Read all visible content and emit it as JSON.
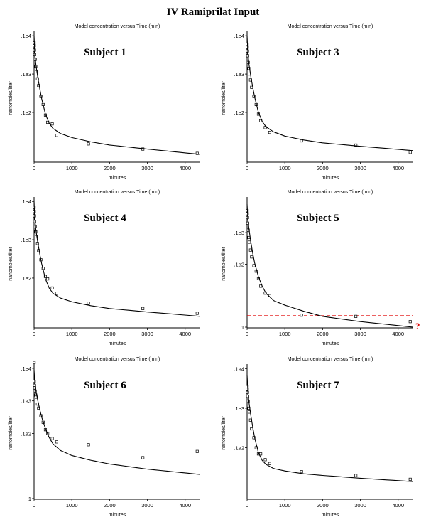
{
  "title": "IV Ramiprilat Input",
  "chart_data": [
    {
      "type": "scatter",
      "title": "Model concentration versus Time (min)",
      "subject_label": "Subject 1",
      "xlabel": "minutes",
      "ylabel": "nanomoles/liter",
      "y_scale": "log",
      "xlim": [
        0,
        4400
      ],
      "ylim": [
        5,
        11000
      ],
      "x_ticks": [
        {
          "v": 0,
          "label": "0"
        },
        {
          "v": 1000,
          "label": "1000"
        },
        {
          "v": 2000,
          "label": "2000"
        },
        {
          "v": 3000,
          "label": "3000"
        },
        {
          "v": 4000,
          "label": "4000"
        }
      ],
      "y_ticks": [
        {
          "v": 10000,
          "label": ".1e4"
        },
        {
          "v": 1000,
          "label": ".1e3"
        },
        {
          "v": 100,
          "label": ".1e2"
        }
      ],
      "series": [
        {
          "kind": "points",
          "x": [
            2,
            5,
            10,
            15,
            30,
            45,
            60,
            90,
            120,
            180,
            240,
            300,
            360,
            480,
            600,
            1440,
            2880,
            4320
          ],
          "y": [
            6500,
            5500,
            4200,
            3200,
            2400,
            1600,
            1150,
            750,
            500,
            260,
            160,
            85,
            55,
            50,
            25,
            15,
            11,
            8.5
          ]
        },
        {
          "kind": "model",
          "x": [
            0,
            20,
            50,
            100,
            150,
            200,
            300,
            400,
            500,
            700,
            1000,
            1500,
            2000,
            3000,
            4400
          ],
          "y": [
            10000,
            3300,
            1700,
            800,
            420,
            230,
            90,
            52,
            38,
            28,
            22,
            17,
            14,
            11,
            8
          ]
        }
      ]
    },
    {
      "type": "scatter",
      "title": "Model concentration versus Time (min)",
      "subject_label": "Subject 3",
      "xlabel": "minutes",
      "ylabel": "nanomoles/liter",
      "y_scale": "log",
      "xlim": [
        0,
        4400
      ],
      "ylim": [
        5,
        11000
      ],
      "x_ticks": [
        {
          "v": 0,
          "label": "0"
        },
        {
          "v": 1000,
          "label": "1000"
        },
        {
          "v": 2000,
          "label": "2000"
        },
        {
          "v": 3000,
          "label": "3000"
        },
        {
          "v": 4000,
          "label": "4000"
        }
      ],
      "y_ticks": [
        {
          "v": 10000,
          "label": ".1e4"
        },
        {
          "v": 1000,
          "label": ".1e3"
        },
        {
          "v": 100,
          "label": ".1e2"
        }
      ],
      "series": [
        {
          "kind": "points",
          "x": [
            2,
            5,
            10,
            15,
            30,
            45,
            60,
            90,
            120,
            180,
            240,
            300,
            360,
            480,
            600,
            1440,
            2880,
            4320
          ],
          "y": [
            6000,
            5000,
            4000,
            3000,
            2000,
            1400,
            1000,
            700,
            450,
            260,
            160,
            90,
            60,
            40,
            30,
            18,
            14,
            9
          ]
        },
        {
          "kind": "model",
          "x": [
            0,
            20,
            50,
            100,
            150,
            200,
            300,
            400,
            500,
            700,
            1000,
            1500,
            2000,
            3000,
            4400
          ],
          "y": [
            10000,
            3500,
            1800,
            850,
            450,
            250,
            100,
            58,
            42,
            31,
            24,
            19,
            16,
            13,
            10
          ]
        }
      ]
    },
    {
      "type": "scatter",
      "title": "Model concentration versus Time (min)",
      "subject_label": "Subject 4",
      "xlabel": "minutes",
      "ylabel": "nanomoles/liter",
      "y_scale": "log",
      "xlim": [
        0,
        4400
      ],
      "ylim": [
        5,
        11000
      ],
      "x_ticks": [
        {
          "v": 0,
          "label": "0"
        },
        {
          "v": 1000,
          "label": "1000"
        },
        {
          "v": 2000,
          "label": "2000"
        },
        {
          "v": 3000,
          "label": "3000"
        },
        {
          "v": 4000,
          "label": "4000"
        }
      ],
      "y_ticks": [
        {
          "v": 10000,
          "label": ".1e4"
        },
        {
          "v": 1000,
          "label": ".1e3"
        },
        {
          "v": 100,
          "label": ".1e2"
        }
      ],
      "series": [
        {
          "kind": "points",
          "x": [
            2,
            5,
            10,
            15,
            30,
            45,
            60,
            90,
            120,
            180,
            240,
            300,
            360,
            480,
            600,
            1440,
            2880,
            4320
          ],
          "y": [
            7000,
            5500,
            4200,
            3000,
            2200,
            1600,
            1200,
            800,
            520,
            300,
            180,
            110,
            95,
            55,
            40,
            22,
            16,
            12
          ]
        },
        {
          "kind": "model",
          "x": [
            0,
            20,
            50,
            100,
            150,
            200,
            300,
            400,
            500,
            700,
            1000,
            1500,
            2000,
            3000,
            4400
          ],
          "y": [
            10000,
            3400,
            1750,
            820,
            430,
            240,
            95,
            55,
            40,
            30,
            24,
            19,
            16,
            13,
            10
          ]
        }
      ]
    },
    {
      "type": "scatter",
      "title": "Model concentration versus Time (min)",
      "subject_label": "Subject 5",
      "xlabel": "minutes",
      "ylabel": "nanomoles/liter",
      "y_scale": "log",
      "xlim": [
        0,
        4400
      ],
      "ylim": [
        0.95,
        11000
      ],
      "x_ticks": [
        {
          "v": 0,
          "label": "0"
        },
        {
          "v": 1000,
          "label": "1000"
        },
        {
          "v": 2000,
          "label": "2000"
        },
        {
          "v": 3000,
          "label": "3000"
        },
        {
          "v": 4000,
          "label": "4000"
        }
      ],
      "y_ticks": [
        {
          "v": 1000,
          "label": ".1e3"
        },
        {
          "v": 100,
          "label": ".1e2"
        },
        {
          "v": 1,
          "label": "1"
        }
      ],
      "reference_line": {
        "y": 2.3,
        "color": "#e00000",
        "label": "?"
      },
      "series": [
        {
          "kind": "points",
          "x": [
            2,
            5,
            10,
            15,
            30,
            45,
            60,
            90,
            120,
            180,
            240,
            300,
            360,
            480,
            600,
            1440,
            2880,
            4320
          ],
          "y": [
            5000,
            4000,
            3000,
            2000,
            1200,
            700,
            500,
            280,
            170,
            90,
            60,
            35,
            20,
            12,
            10,
            2.4,
            2.2,
            1.5
          ]
        },
        {
          "kind": "model",
          "x": [
            0,
            20,
            50,
            100,
            150,
            200,
            300,
            400,
            500,
            700,
            1000,
            1500,
            2000,
            3000,
            4400
          ],
          "y": [
            8000,
            2800,
            1300,
            500,
            220,
            110,
            40,
            20,
            12,
            7,
            5,
            3.2,
            2.2,
            1.5,
            1.0
          ]
        }
      ]
    },
    {
      "type": "scatter",
      "title": "Model concentration versus Time (min)",
      "subject_label": "Subject 6",
      "xlabel": "minutes",
      "ylabel": "nanomoles/liter",
      "y_scale": "log",
      "xlim": [
        0,
        4400
      ],
      "ylim": [
        0.95,
        11000
      ],
      "x_ticks": [
        {
          "v": 0,
          "label": "0"
        },
        {
          "v": 1000,
          "label": "1000"
        },
        {
          "v": 2000,
          "label": "2000"
        },
        {
          "v": 3000,
          "label": "3000"
        },
        {
          "v": 4000,
          "label": "4000"
        }
      ],
      "y_ticks": [
        {
          "v": 10000,
          "label": ".1e4"
        },
        {
          "v": 1000,
          "label": ".1e3"
        },
        {
          "v": 100,
          "label": ".1e2"
        },
        {
          "v": 1,
          "label": "1"
        }
      ],
      "series": [
        {
          "kind": "points",
          "x": [
            2,
            5,
            10,
            15,
            30,
            45,
            60,
            90,
            120,
            180,
            240,
            300,
            360,
            480,
            600,
            1440,
            2880,
            4320
          ],
          "y": [
            15000,
            4000,
            3000,
            2500,
            2000,
            1500,
            1300,
            800,
            600,
            350,
            220,
            130,
            100,
            70,
            55,
            45,
            18,
            28
          ]
        },
        {
          "kind": "model",
          "x": [
            0,
            20,
            50,
            100,
            150,
            200,
            300,
            400,
            500,
            700,
            1000,
            1500,
            2000,
            3000,
            4400
          ],
          "y": [
            9000,
            3600,
            2000,
            1000,
            550,
            320,
            140,
            75,
            48,
            30,
            21,
            15,
            11.5,
            8,
            5.5
          ]
        }
      ]
    },
    {
      "type": "scatter",
      "title": "Model concentration versus Time (min)",
      "subject_label": "Subject 7",
      "xlabel": "minutes",
      "ylabel": "nanomoles/liter",
      "y_scale": "log",
      "xlim": [
        0,
        4400
      ],
      "ylim": [
        5,
        11000
      ],
      "x_ticks": [
        {
          "v": 0,
          "label": "0"
        },
        {
          "v": 1000,
          "label": "1000"
        },
        {
          "v": 2000,
          "label": "2000"
        },
        {
          "v": 3000,
          "label": "3000"
        },
        {
          "v": 4000,
          "label": "4000"
        }
      ],
      "y_ticks": [
        {
          "v": 10000,
          "label": ".1e4"
        },
        {
          "v": 1000,
          "label": ".1e3"
        },
        {
          "v": 100,
          "label": ".1e2"
        }
      ],
      "series": [
        {
          "kind": "points",
          "x": [
            2,
            5,
            10,
            15,
            30,
            45,
            60,
            90,
            120,
            180,
            240,
            300,
            360,
            480,
            600,
            1440,
            2880,
            4320
          ],
          "y": [
            3500,
            3000,
            2500,
            2000,
            1500,
            1000,
            800,
            500,
            300,
            180,
            100,
            70,
            70,
            50,
            40,
            25,
            20,
            16
          ]
        },
        {
          "kind": "model",
          "x": [
            0,
            20,
            50,
            100,
            150,
            200,
            300,
            400,
            500,
            700,
            1000,
            1500,
            2000,
            3000,
            4400
          ],
          "y": [
            7000,
            2700,
            1400,
            650,
            330,
            180,
            75,
            48,
            38,
            30,
            26,
            22,
            20,
            17,
            14
          ]
        }
      ]
    }
  ]
}
